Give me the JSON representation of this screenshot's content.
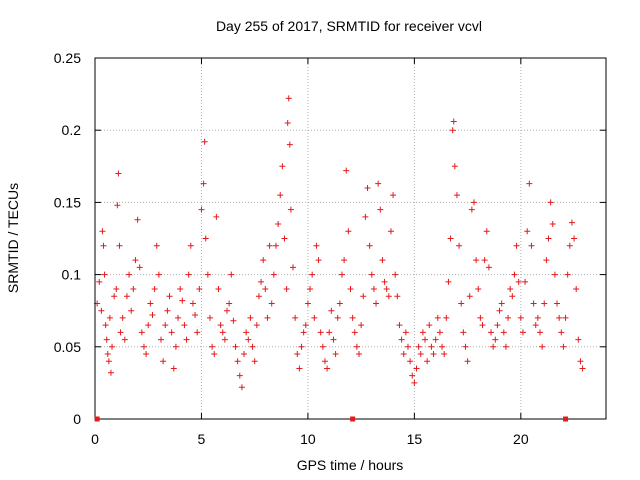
{
  "chart_data": {
    "type": "scatter",
    "title": "Day 255 of 2017, SRMTID for receiver vcvl",
    "xlabel": "GPS time / hours",
    "ylabel": "SRMTID / TECUs",
    "xlim": [
      0,
      24
    ],
    "ylim": [
      0,
      0.25
    ],
    "x_ticks": [
      0,
      5,
      10,
      15,
      20
    ],
    "y_ticks": [
      0,
      0.05,
      0.1,
      0.15,
      0.2,
      0.25
    ],
    "x_tick_labels": [
      "0",
      "5",
      "10",
      "15",
      "20"
    ],
    "y_tick_labels": [
      "0",
      "0.05",
      "0.1",
      "0.15",
      "0.2",
      "0.25"
    ],
    "grid": true,
    "marker": "+",
    "color": "#e41a1c",
    "baseline_markers_x": [
      0.1,
      12.1,
      22.1
    ],
    "series": [
      {
        "name": "SRMTID",
        "points": [
          [
            0.1,
            0.08
          ],
          [
            0.2,
            0.095
          ],
          [
            0.3,
            0.075
          ],
          [
            0.35,
            0.13
          ],
          [
            0.4,
            0.12
          ],
          [
            0.45,
            0.1
          ],
          [
            0.5,
            0.065
          ],
          [
            0.55,
            0.055
          ],
          [
            0.6,
            0.045
          ],
          [
            0.65,
            0.04
          ],
          [
            0.7,
            0.07
          ],
          [
            0.75,
            0.032
          ],
          [
            0.8,
            0.05
          ],
          [
            0.9,
            0.085
          ],
          [
            1.0,
            0.09
          ],
          [
            1.05,
            0.148
          ],
          [
            1.1,
            0.17
          ],
          [
            1.15,
            0.12
          ],
          [
            1.2,
            0.06
          ],
          [
            1.3,
            0.07
          ],
          [
            1.4,
            0.055
          ],
          [
            1.5,
            0.085
          ],
          [
            1.6,
            0.1
          ],
          [
            1.7,
            0.075
          ],
          [
            1.8,
            0.09
          ],
          [
            1.9,
            0.11
          ],
          [
            2.0,
            0.138
          ],
          [
            2.1,
            0.105
          ],
          [
            2.2,
            0.06
          ],
          [
            2.3,
            0.05
          ],
          [
            2.4,
            0.045
          ],
          [
            2.5,
            0.065
          ],
          [
            2.6,
            0.08
          ],
          [
            2.7,
            0.072
          ],
          [
            2.8,
            0.09
          ],
          [
            2.9,
            0.12
          ],
          [
            3.0,
            0.1
          ],
          [
            3.1,
            0.055
          ],
          [
            3.2,
            0.04
          ],
          [
            3.3,
            0.065
          ],
          [
            3.4,
            0.075
          ],
          [
            3.5,
            0.085
          ],
          [
            3.6,
            0.06
          ],
          [
            3.7,
            0.035
          ],
          [
            3.8,
            0.05
          ],
          [
            3.9,
            0.07
          ],
          [
            4.0,
            0.09
          ],
          [
            4.1,
            0.082
          ],
          [
            4.2,
            0.065
          ],
          [
            4.3,
            0.055
          ],
          [
            4.4,
            0.1
          ],
          [
            4.5,
            0.12
          ],
          [
            4.6,
            0.08
          ],
          [
            4.7,
            0.072
          ],
          [
            4.8,
            0.06
          ],
          [
            4.9,
            0.09
          ],
          [
            5.0,
            0.145
          ],
          [
            5.1,
            0.163
          ],
          [
            5.15,
            0.192
          ],
          [
            5.2,
            0.125
          ],
          [
            5.3,
            0.1
          ],
          [
            5.4,
            0.07
          ],
          [
            5.5,
            0.05
          ],
          [
            5.6,
            0.045
          ],
          [
            5.7,
            0.14
          ],
          [
            5.8,
            0.09
          ],
          [
            5.9,
            0.065
          ],
          [
            6.0,
            0.06
          ],
          [
            6.1,
            0.055
          ],
          [
            6.2,
            0.075
          ],
          [
            6.3,
            0.08
          ],
          [
            6.4,
            0.1
          ],
          [
            6.5,
            0.068
          ],
          [
            6.6,
            0.05
          ],
          [
            6.7,
            0.04
          ],
          [
            6.8,
            0.03
          ],
          [
            6.9,
            0.022
          ],
          [
            7.0,
            0.045
          ],
          [
            7.1,
            0.06
          ],
          [
            7.2,
            0.055
          ],
          [
            7.3,
            0.07
          ],
          [
            7.4,
            0.05
          ],
          [
            7.5,
            0.04
          ],
          [
            7.6,
            0.065
          ],
          [
            7.7,
            0.085
          ],
          [
            7.8,
            0.095
          ],
          [
            7.9,
            0.11
          ],
          [
            8.0,
            0.09
          ],
          [
            8.1,
            0.07
          ],
          [
            8.2,
            0.12
          ],
          [
            8.3,
            0.08
          ],
          [
            8.4,
            0.1
          ],
          [
            8.5,
            0.12
          ],
          [
            8.6,
            0.135
          ],
          [
            8.7,
            0.155
          ],
          [
            8.8,
            0.175
          ],
          [
            8.9,
            0.125
          ],
          [
            9.0,
            0.09
          ],
          [
            9.05,
            0.205
          ],
          [
            9.1,
            0.222
          ],
          [
            9.15,
            0.19
          ],
          [
            9.2,
            0.145
          ],
          [
            9.3,
            0.105
          ],
          [
            9.4,
            0.07
          ],
          [
            9.5,
            0.045
          ],
          [
            9.6,
            0.035
          ],
          [
            9.7,
            0.05
          ],
          [
            9.8,
            0.06
          ],
          [
            9.9,
            0.065
          ],
          [
            10.0,
            0.08
          ],
          [
            10.1,
            0.09
          ],
          [
            10.2,
            0.1
          ],
          [
            10.3,
            0.07
          ],
          [
            10.4,
            0.12
          ],
          [
            10.5,
            0.11
          ],
          [
            10.6,
            0.06
          ],
          [
            10.7,
            0.05
          ],
          [
            10.8,
            0.04
          ],
          [
            10.9,
            0.035
          ],
          [
            11.0,
            0.06
          ],
          [
            11.1,
            0.075
          ],
          [
            11.2,
            0.055
          ],
          [
            11.3,
            0.045
          ],
          [
            11.4,
            0.07
          ],
          [
            11.5,
            0.08
          ],
          [
            11.6,
            0.1
          ],
          [
            11.7,
            0.11
          ],
          [
            11.8,
            0.172
          ],
          [
            11.9,
            0.13
          ],
          [
            12.0,
            0.09
          ],
          [
            12.1,
            0.07
          ],
          [
            12.2,
            0.06
          ],
          [
            12.3,
            0.05
          ],
          [
            12.4,
            0.045
          ],
          [
            12.5,
            0.065
          ],
          [
            12.6,
            0.085
          ],
          [
            12.7,
            0.14
          ],
          [
            12.8,
            0.16
          ],
          [
            12.9,
            0.12
          ],
          [
            13.0,
            0.1
          ],
          [
            13.1,
            0.09
          ],
          [
            13.2,
            0.08
          ],
          [
            13.3,
            0.163
          ],
          [
            13.4,
            0.145
          ],
          [
            13.5,
            0.11
          ],
          [
            13.6,
            0.095
          ],
          [
            13.7,
            0.09
          ],
          [
            13.8,
            0.085
          ],
          [
            13.9,
            0.13
          ],
          [
            14.0,
            0.155
          ],
          [
            14.1,
            0.1
          ],
          [
            14.2,
            0.085
          ],
          [
            14.3,
            0.065
          ],
          [
            14.4,
            0.055
          ],
          [
            14.5,
            0.045
          ],
          [
            14.6,
            0.06
          ],
          [
            14.7,
            0.05
          ],
          [
            14.8,
            0.04
          ],
          [
            14.9,
            0.03
          ],
          [
            15.0,
            0.025
          ],
          [
            15.1,
            0.035
          ],
          [
            15.2,
            0.05
          ],
          [
            15.3,
            0.045
          ],
          [
            15.4,
            0.06
          ],
          [
            15.5,
            0.055
          ],
          [
            15.6,
            0.04
          ],
          [
            15.7,
            0.065
          ],
          [
            15.8,
            0.05
          ],
          [
            15.9,
            0.045
          ],
          [
            16.0,
            0.055
          ],
          [
            16.1,
            0.07
          ],
          [
            16.2,
            0.06
          ],
          [
            16.3,
            0.05
          ],
          [
            16.4,
            0.045
          ],
          [
            16.5,
            0.07
          ],
          [
            16.6,
            0.095
          ],
          [
            16.7,
            0.125
          ],
          [
            16.8,
            0.2
          ],
          [
            16.85,
            0.206
          ],
          [
            16.9,
            0.175
          ],
          [
            17.0,
            0.155
          ],
          [
            17.1,
            0.12
          ],
          [
            17.2,
            0.08
          ],
          [
            17.3,
            0.06
          ],
          [
            17.4,
            0.05
          ],
          [
            17.5,
            0.04
          ],
          [
            17.6,
            0.085
          ],
          [
            17.7,
            0.145
          ],
          [
            17.8,
            0.15
          ],
          [
            17.9,
            0.11
          ],
          [
            18.0,
            0.09
          ],
          [
            18.1,
            0.07
          ],
          [
            18.2,
            0.065
          ],
          [
            18.3,
            0.11
          ],
          [
            18.4,
            0.13
          ],
          [
            18.5,
            0.105
          ],
          [
            18.6,
            0.06
          ],
          [
            18.7,
            0.05
          ],
          [
            18.8,
            0.055
          ],
          [
            18.9,
            0.065
          ],
          [
            19.0,
            0.075
          ],
          [
            19.1,
            0.08
          ],
          [
            19.2,
            0.06
          ],
          [
            19.3,
            0.05
          ],
          [
            19.4,
            0.07
          ],
          [
            19.5,
            0.09
          ],
          [
            19.6,
            0.085
          ],
          [
            19.7,
            0.1
          ],
          [
            19.8,
            0.12
          ],
          [
            19.9,
            0.095
          ],
          [
            20.0,
            0.07
          ],
          [
            20.1,
            0.06
          ],
          [
            20.2,
            0.095
          ],
          [
            20.3,
            0.13
          ],
          [
            20.4,
            0.163
          ],
          [
            20.5,
            0.12
          ],
          [
            20.6,
            0.08
          ],
          [
            20.7,
            0.065
          ],
          [
            20.8,
            0.07
          ],
          [
            20.9,
            0.06
          ],
          [
            21.0,
            0.05
          ],
          [
            21.1,
            0.08
          ],
          [
            21.2,
            0.11
          ],
          [
            21.3,
            0.125
          ],
          [
            21.4,
            0.15
          ],
          [
            21.5,
            0.135
          ],
          [
            21.6,
            0.1
          ],
          [
            21.7,
            0.08
          ],
          [
            21.8,
            0.07
          ],
          [
            21.9,
            0.06
          ],
          [
            22.0,
            0.05
          ],
          [
            22.1,
            0.07
          ],
          [
            22.2,
            0.1
          ],
          [
            22.3,
            0.12
          ],
          [
            22.4,
            0.136
          ],
          [
            22.5,
            0.125
          ],
          [
            22.6,
            0.09
          ],
          [
            22.7,
            0.055
          ],
          [
            22.8,
            0.04
          ],
          [
            22.9,
            0.035
          ]
        ]
      }
    ]
  }
}
